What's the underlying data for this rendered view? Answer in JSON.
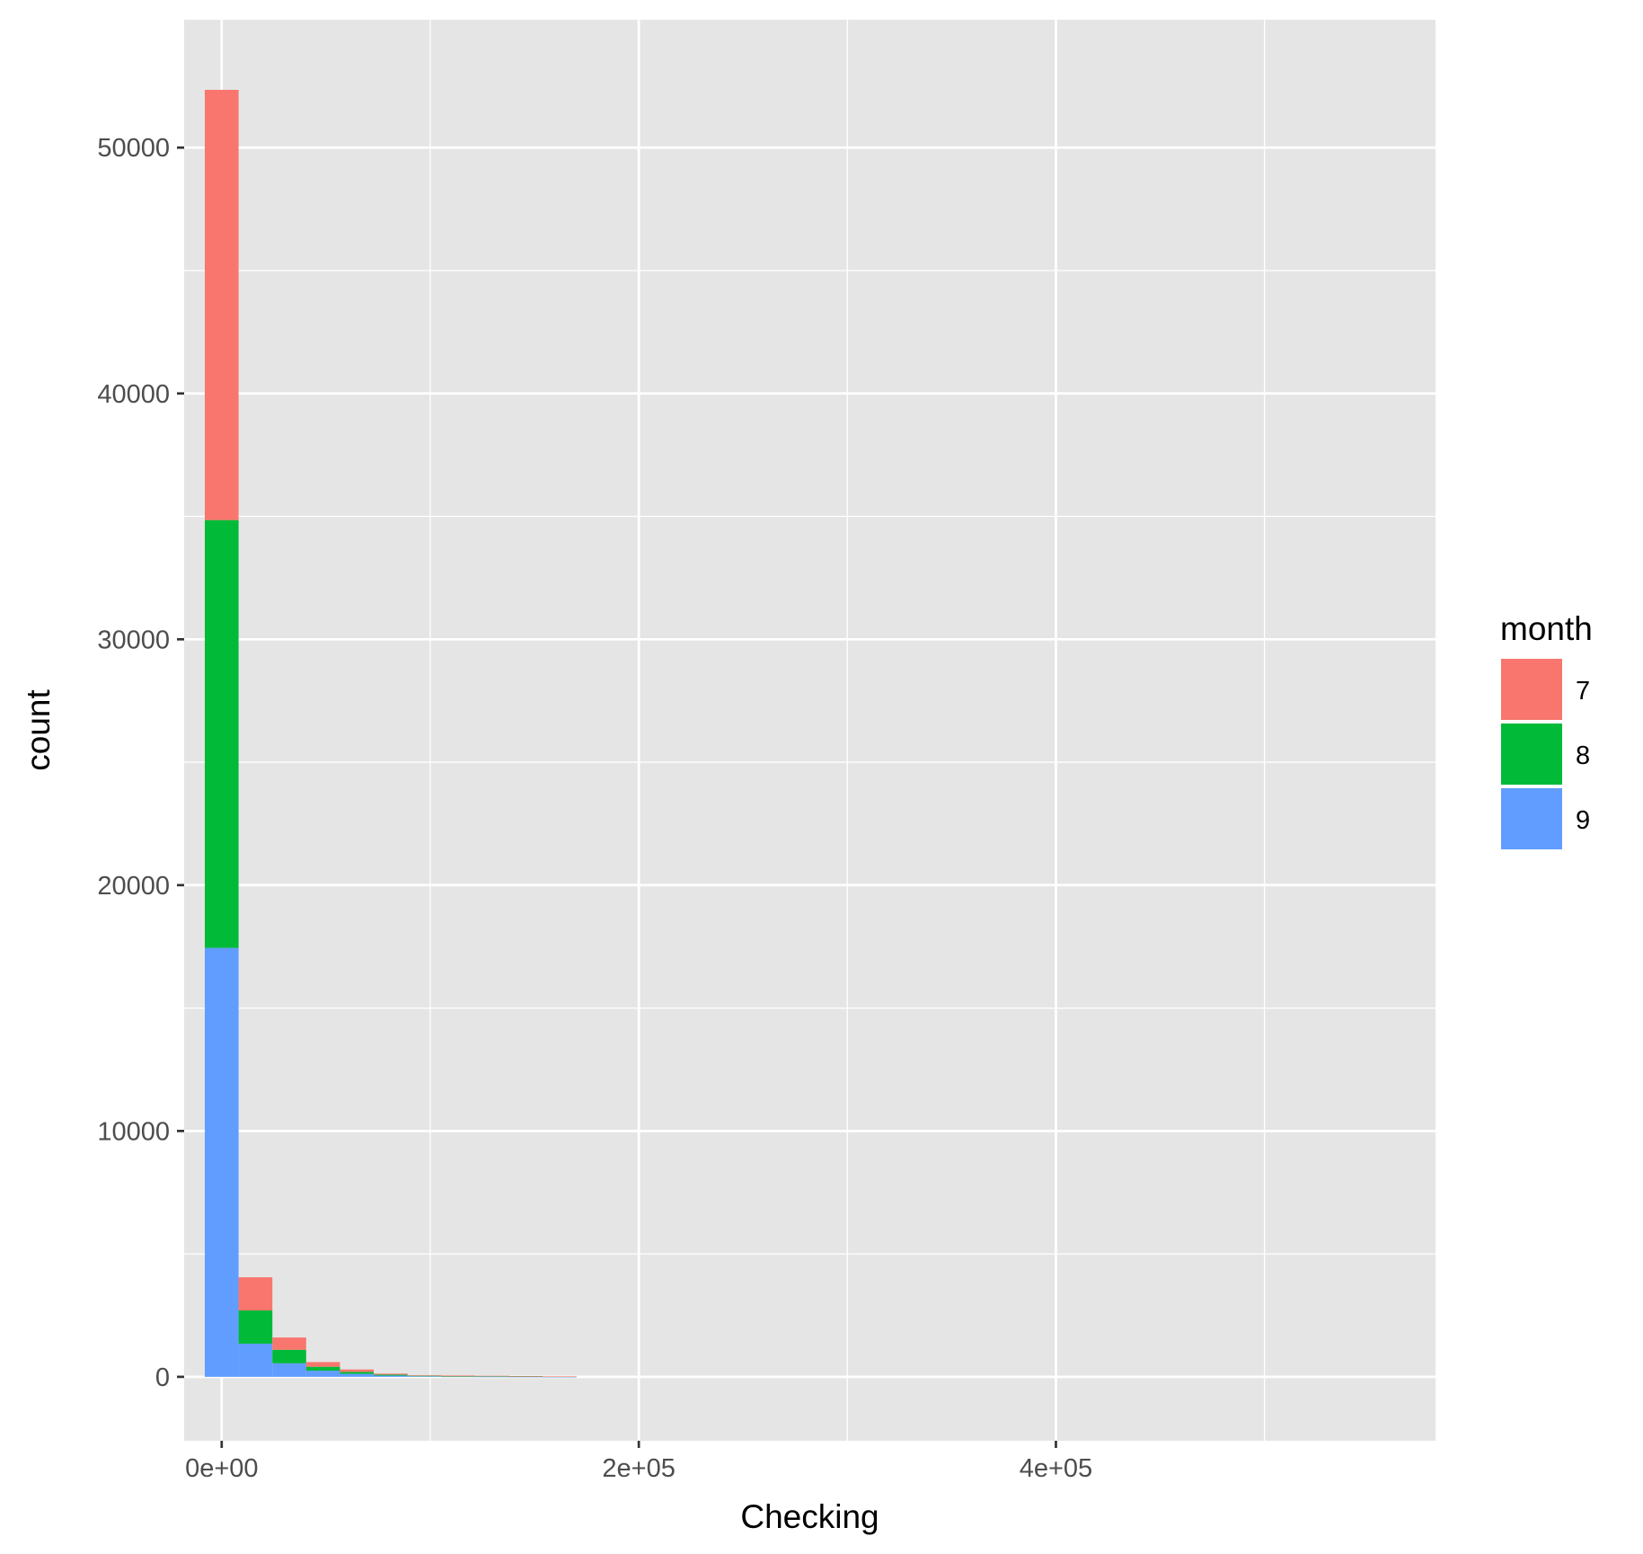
{
  "chart_data": {
    "type": "bar",
    "subtype": "stacked-histogram",
    "title": "",
    "xlabel": "Checking",
    "ylabel": "count",
    "xlim": [
      -18000,
      582000
    ],
    "ylim": [
      -2600,
      55200
    ],
    "x_ticks": [
      {
        "value": 0,
        "label": "0e+00"
      },
      {
        "value": 200000,
        "label": "2e+05"
      },
      {
        "value": 400000,
        "label": "4e+05"
      }
    ],
    "x_minor_ticks": [
      100000,
      300000,
      500000
    ],
    "y_ticks": [
      {
        "value": 0,
        "label": "0"
      },
      {
        "value": 10000,
        "label": "10000"
      },
      {
        "value": 20000,
        "label": "20000"
      },
      {
        "value": 30000,
        "label": "30000"
      },
      {
        "value": 40000,
        "label": "40000"
      },
      {
        "value": 50000,
        "label": "50000"
      }
    ],
    "y_minor_ticks": [
      5000,
      15000,
      25000,
      35000,
      45000
    ],
    "bin_width": 16200,
    "bin_centers": [
      0,
      16200,
      32400,
      48600,
      64800,
      81000,
      97200,
      113400,
      129600,
      145800,
      162000
    ],
    "grid": true,
    "legend_position": "right",
    "legend_title": "month",
    "series": [
      {
        "name": "9",
        "color": "#619cff",
        "values": [
          17450,
          1350,
          550,
          250,
          120,
          50,
          25,
          12,
          8,
          5,
          3
        ]
      },
      {
        "name": "8",
        "color": "#00ba38",
        "values": [
          17400,
          1350,
          550,
          160,
          80,
          40,
          20,
          10,
          20,
          15,
          10
        ]
      },
      {
        "name": "7",
        "color": "#f8766d",
        "values": [
          17500,
          1350,
          500,
          190,
          100,
          40,
          20,
          30,
          15,
          10,
          5
        ]
      }
    ],
    "legend_order": [
      "7",
      "8",
      "9"
    ],
    "colors": {
      "panel": "#e5e5e5",
      "grid": "#ffffff",
      "tick_text": "#4d4d4d",
      "tick_mark": "#333333"
    }
  }
}
